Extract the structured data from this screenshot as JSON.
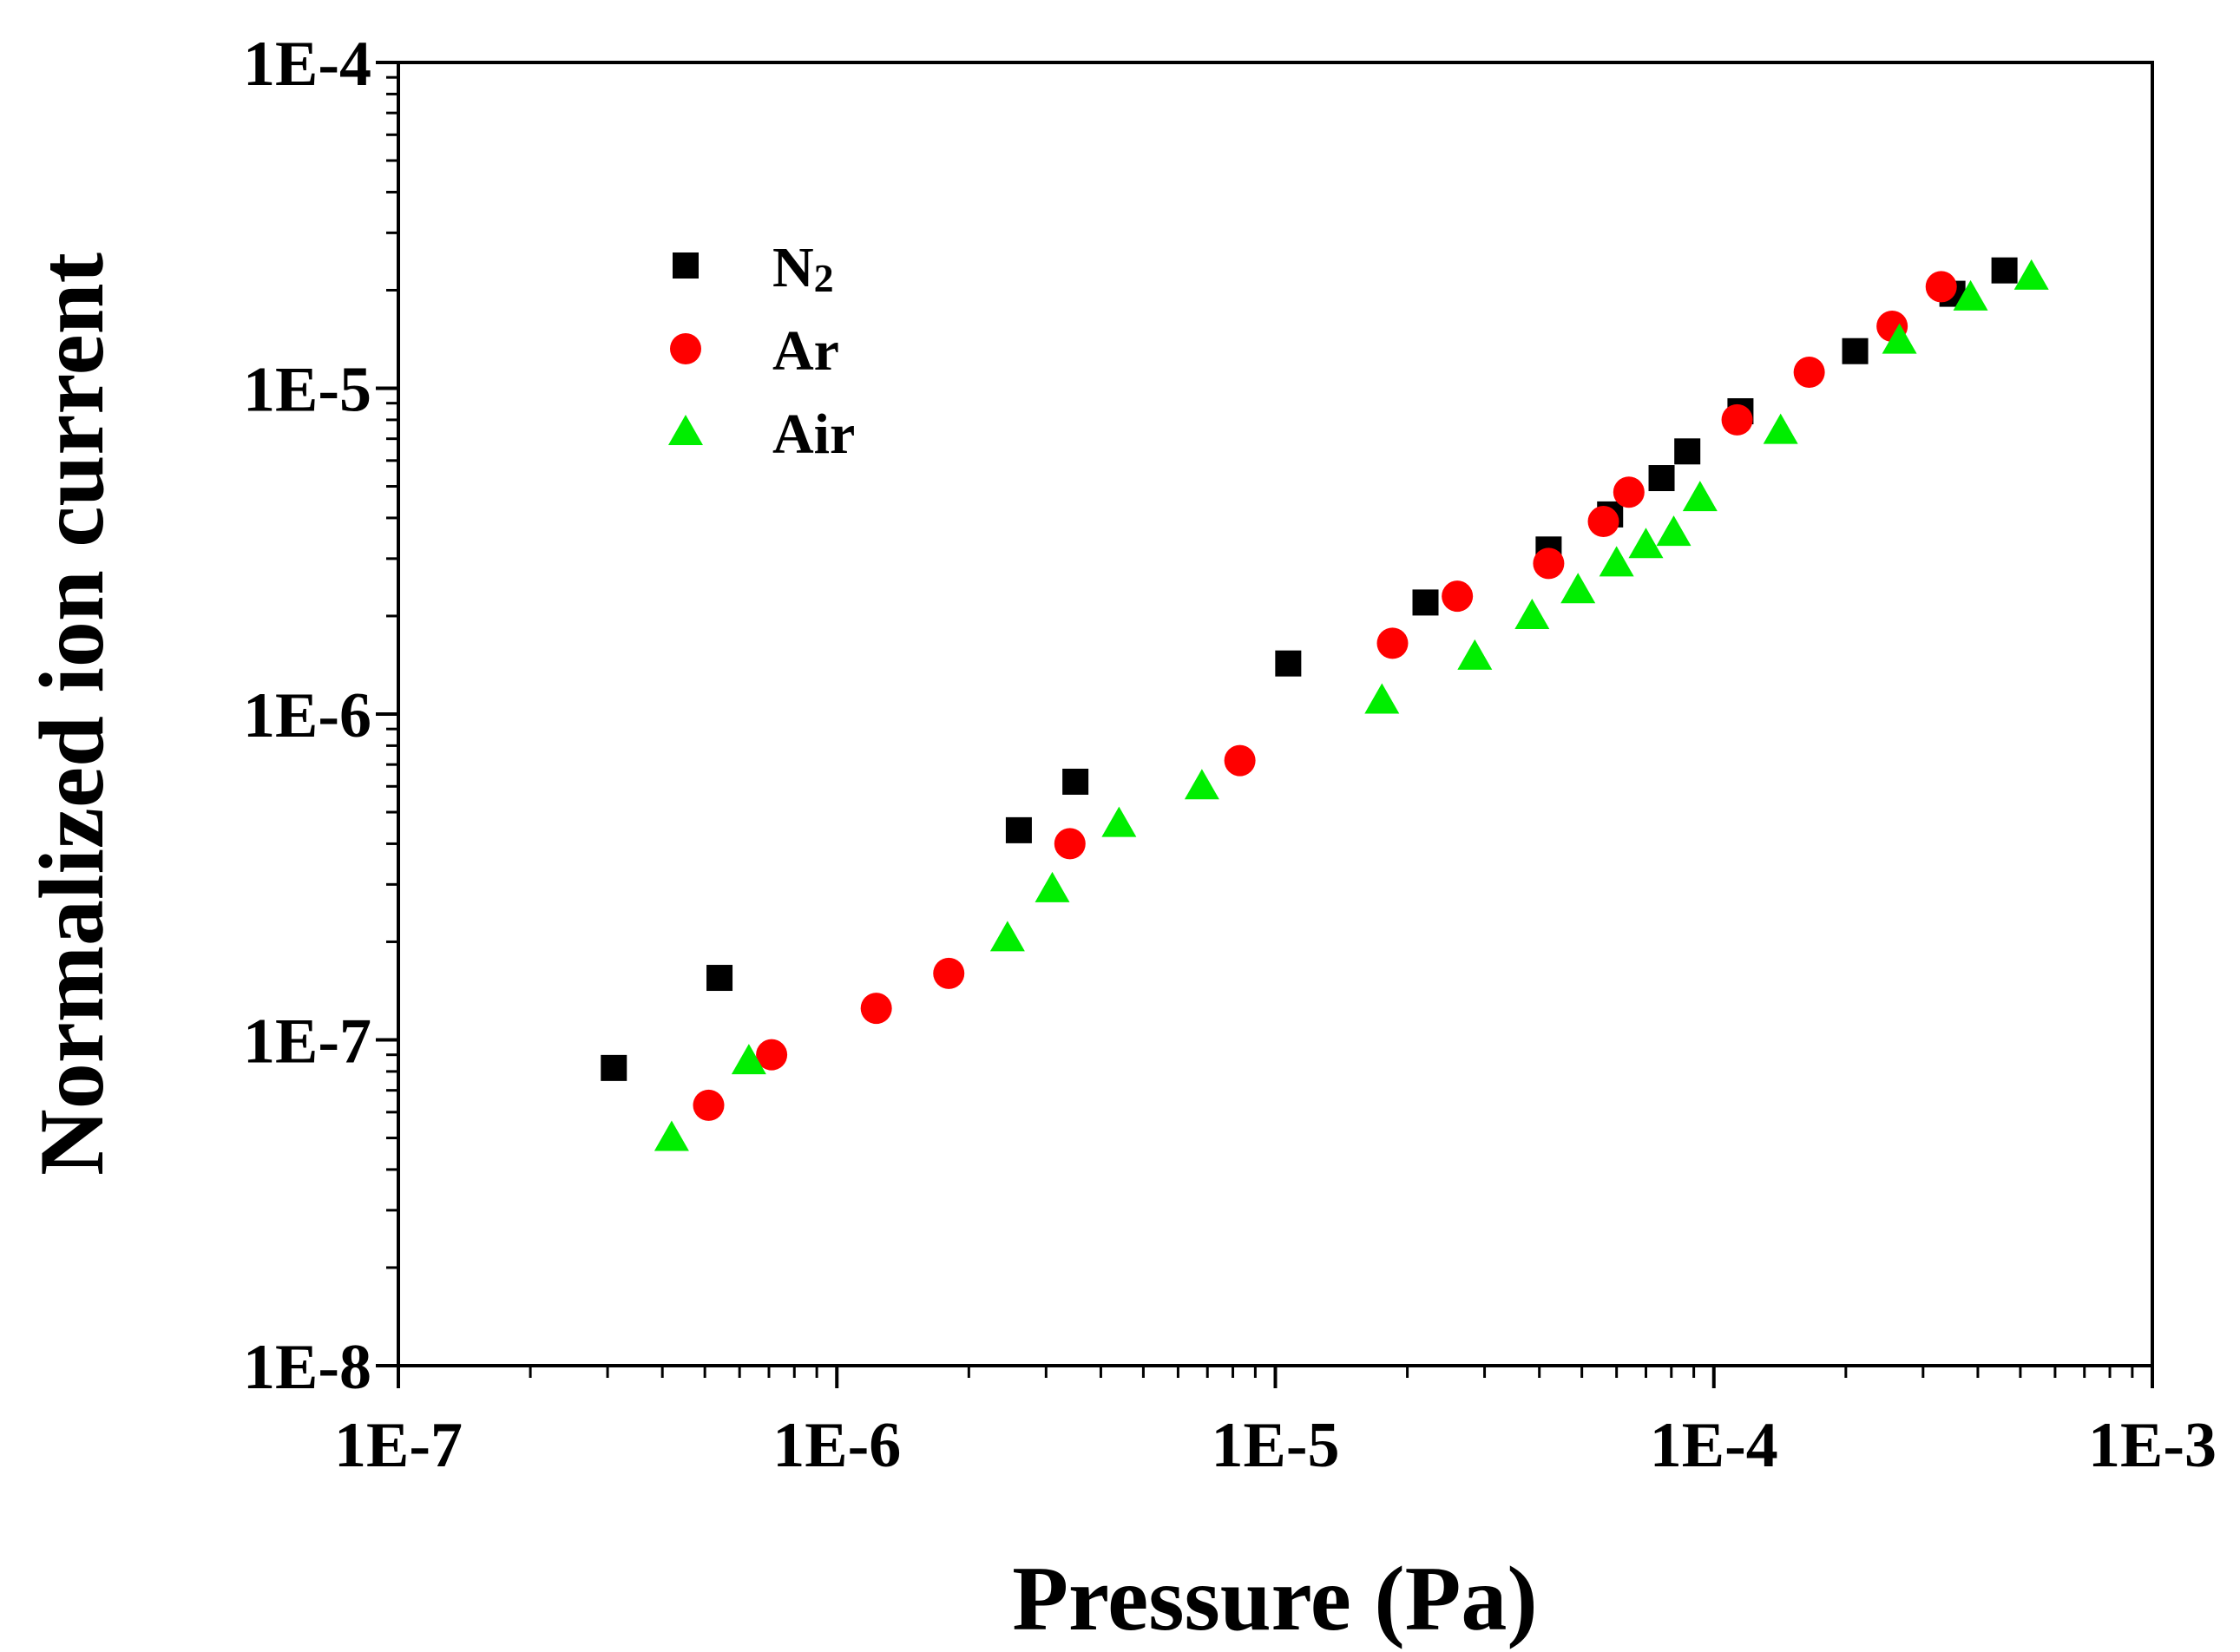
{
  "chart_data": {
    "type": "scatter",
    "title": "",
    "xlabel": "Pressure (Pa)",
    "ylabel": "Normalized ion current",
    "xscale": "log",
    "yscale": "log",
    "xlim": [
      1e-07,
      0.001
    ],
    "ylim": [
      1e-08,
      0.0001
    ],
    "x_ticks": [
      1e-07,
      1e-06,
      1e-05,
      0.0001,
      0.001
    ],
    "x_tick_labels": [
      "1E-7",
      "1E-6",
      "1E-5",
      "1E-4",
      "1E-3"
    ],
    "y_ticks": [
      1e-08,
      1e-07,
      1e-06,
      1e-05,
      0.0001
    ],
    "y_tick_labels": [
      "1E-8",
      "1E-7",
      "1E-6",
      "1E-5",
      "1E-4"
    ],
    "legend_position": "top-left",
    "series": [
      {
        "name": "N2",
        "label_main": "N",
        "label_sub": "2",
        "marker": "square",
        "color": "#000000",
        "x": [
          3.1e-07,
          5.4e-07,
          2.6e-06,
          3.5e-06,
          1.07e-05,
          2.2e-05,
          4.2e-05,
          5.8e-05,
          7.6e-05,
          8.7e-05,
          0.000115,
          0.00021,
          0.00035,
          0.00046
        ],
        "y": [
          8.2e-08,
          1.55e-07,
          4.4e-07,
          6.2e-07,
          1.43e-06,
          2.2e-06,
          3.2e-06,
          4.1e-06,
          5.3e-06,
          6.4e-06,
          8.5e-06,
          1.3e-05,
          1.95e-05,
          2.3e-05
        ]
      },
      {
        "name": "Ar",
        "label_main": "Ar",
        "label_sub": "",
        "marker": "circle",
        "color": "#ff0000",
        "x": [
          5.1e-07,
          7.1e-07,
          1.23e-06,
          1.8e-06,
          3.4e-06,
          8.3e-06,
          1.85e-05,
          2.6e-05,
          4.2e-05,
          5.6e-05,
          6.4e-05,
          0.000113,
          0.000165,
          0.000255,
          0.00033
        ],
        "y": [
          6.3e-08,
          9e-08,
          1.25e-07,
          1.6e-07,
          4e-07,
          7.2e-07,
          1.65e-06,
          2.3e-06,
          2.9e-06,
          3.9e-06,
          4.8e-06,
          8e-06,
          1.12e-05,
          1.55e-05,
          2.05e-05
        ]
      },
      {
        "name": "Air",
        "label_main": "Air",
        "label_sub": "",
        "marker": "triangle",
        "color": "#00ee00",
        "x": [
          4.2e-07,
          6.3e-07,
          2.45e-06,
          3.1e-06,
          4.4e-06,
          6.8e-06,
          1.75e-05,
          2.85e-05,
          3.85e-05,
          4.9e-05,
          6e-05,
          7e-05,
          8.1e-05,
          9.3e-05,
          0.000142,
          0.000265,
          0.000385,
          0.00053
        ],
        "y": [
          5e-08,
          8.6e-08,
          2.05e-07,
          2.9e-07,
          4.6e-07,
          6e-07,
          1.1e-06,
          1.5e-06,
          2e-06,
          2.4e-06,
          2.9e-06,
          3.3e-06,
          3.6e-06,
          4.6e-06,
          7.4e-06,
          1.4e-05,
          1.9e-05,
          2.2e-05
        ]
      }
    ]
  }
}
